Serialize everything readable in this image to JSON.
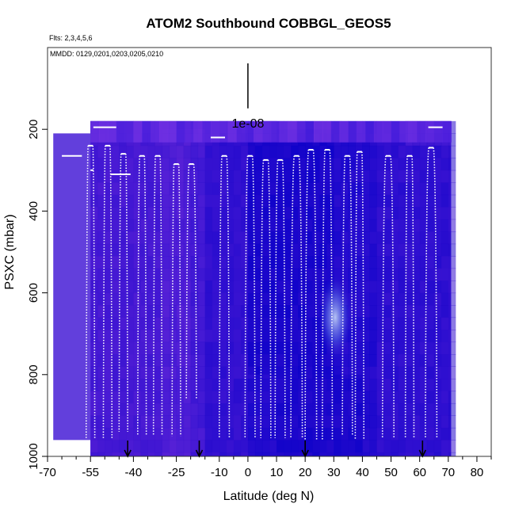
{
  "chart_data": {
    "type": "heatmap",
    "title": "ATOM2 Southbound COBBGL_GEOS5",
    "subtitle_flights": "Flts: 2,3,4,5,6",
    "subtitle_dates": "MMDD: 0129,0201,0203,0205,0210",
    "xlabel": "Latitude (deg N)",
    "ylabel": "PSXC (mbar)",
    "xlim": [
      -70,
      85
    ],
    "ylim": [
      1000,
      0
    ],
    "x_ticks": [
      -70,
      -55,
      -40,
      -25,
      -10,
      0,
      10,
      20,
      30,
      40,
      50,
      60,
      70,
      80
    ],
    "x_minor_ticks": [
      -65,
      -60,
      -50,
      -45,
      -35,
      -30,
      -20,
      -15,
      -5,
      5,
      15,
      25,
      35,
      45,
      55,
      65,
      75,
      85
    ],
    "y_ticks": [
      200,
      400,
      600,
      800,
      1000
    ],
    "scale_label": "1e-08",
    "scale_bar_x": 0,
    "scale_bar_p": [
      0,
      110
    ],
    "arrow_latitudes": [
      -42,
      -17,
      20,
      61
    ],
    "colors": {
      "deep_blue": "#0a00c8",
      "mid_blue": "#2a10d8",
      "violet": "#7a2ad8",
      "light_violet": "#9040e8",
      "highlight": "#b8c8f0",
      "track": "#ffffff"
    },
    "regions": [
      {
        "lat": [
          -68,
          -55
        ],
        "p": [
          210,
          960
        ],
        "shade": 0.45
      },
      {
        "lat": [
          -55,
          71
        ],
        "p": [
          180,
          1000
        ],
        "shade": 0.3
      },
      {
        "lat": [
          -55,
          -20
        ],
        "p": [
          180,
          1000
        ],
        "shade": 0.5
      },
      {
        "lat": [
          -30,
          -15
        ],
        "p": [
          200,
          1000
        ],
        "shade": 0.65
      },
      {
        "lat": [
          0,
          30
        ],
        "p": [
          200,
          800
        ],
        "shade": 0.1
      },
      {
        "lat": [
          10,
          40
        ],
        "p": [
          800,
          1000
        ],
        "shade": 0.15
      },
      {
        "lat": [
          55,
          71
        ],
        "p": [
          180,
          240
        ],
        "shade": 0.75
      },
      {
        "lat": [
          -10,
          10
        ],
        "p": [
          180,
          230
        ],
        "shade": 0.6
      }
    ],
    "profiles": [
      {
        "lat": [
          -56.5,
          -53.5
        ],
        "top": 240,
        "bottom": 955
      },
      {
        "lat": [
          -50.5,
          -47.5
        ],
        "top": 240,
        "bottom": 955
      },
      {
        "lat": [
          -45,
          -42
        ],
        "top": 260,
        "bottom": 940
      },
      {
        "lat": [
          -38.5,
          -35.5
        ],
        "top": 265,
        "bottom": 950
      },
      {
        "lat": [
          -33,
          -30
        ],
        "top": 265,
        "bottom": 950
      },
      {
        "lat": [
          -26.5,
          -23.5
        ],
        "top": 285,
        "bottom": 950
      },
      {
        "lat": [
          -21.5,
          -18
        ],
        "top": 285,
        "bottom": 860
      },
      {
        "lat": [
          -10,
          -6.5
        ],
        "top": 265,
        "bottom": 955
      },
      {
        "lat": [
          -1,
          2.5
        ],
        "top": 265,
        "bottom": 955
      },
      {
        "lat": [
          4.5,
          8
        ],
        "top": 275,
        "bottom": 955
      },
      {
        "lat": [
          9.5,
          13
        ],
        "top": 275,
        "bottom": 955
      },
      {
        "lat": [
          15,
          19
        ],
        "top": 265,
        "bottom": 955
      },
      {
        "lat": [
          20,
          24
        ],
        "top": 250,
        "bottom": 960
      },
      {
        "lat": [
          26,
          29.5
        ],
        "top": 250,
        "bottom": 960
      },
      {
        "lat": [
          33,
          36.5
        ],
        "top": 265,
        "bottom": 950
      },
      {
        "lat": [
          37.5,
          40.5
        ],
        "top": 255,
        "bottom": 960
      },
      {
        "lat": [
          47,
          51
        ],
        "top": 265,
        "bottom": 955
      },
      {
        "lat": [
          55,
          58
        ],
        "top": 265,
        "bottom": 955
      },
      {
        "lat": [
          62,
          66
        ],
        "top": 245,
        "bottom": 955
      }
    ],
    "cruise_legs": [
      {
        "lat": [
          -68.5,
          -68.3
        ],
        "p": 215
      },
      {
        "lat": [
          -65,
          -58
        ],
        "p": 265
      },
      {
        "lat": [
          -55,
          -54
        ],
        "p": 300
      },
      {
        "lat": [
          -54,
          -46
        ],
        "p": 195
      },
      {
        "lat": [
          -48,
          -41
        ],
        "p": 310
      },
      {
        "lat": [
          -13,
          -8
        ],
        "p": 220
      },
      {
        "lat": [
          63,
          68
        ],
        "p": 195
      }
    ]
  }
}
